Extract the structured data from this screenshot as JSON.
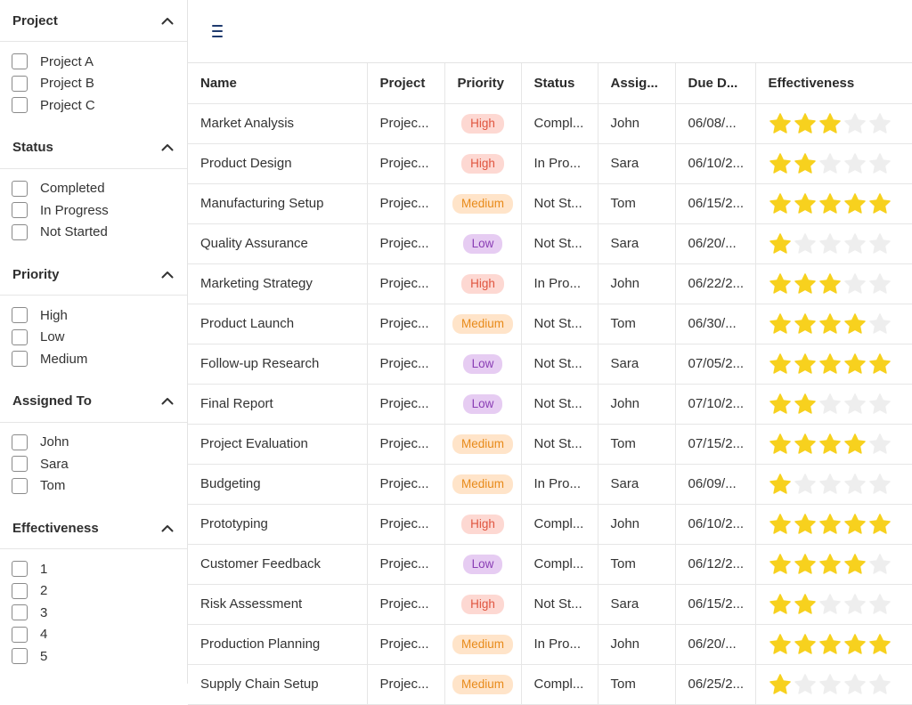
{
  "colors": {
    "star_filled": "#f7d11e",
    "star_empty": "#eeeeee",
    "high_bg": "#fdd8d2",
    "high_fg": "#e0553f",
    "medium_bg": "#ffe4c9",
    "medium_fg": "#e88a19",
    "low_bg": "#e6ccf2",
    "low_fg": "#8a3db5",
    "menu_icon": "#1f3a6e"
  },
  "sidebar": {
    "groups": [
      {
        "title": "Project",
        "icon": "chevron-up-icon",
        "options": [
          "Project A",
          "Project B",
          "Project C"
        ]
      },
      {
        "title": "Status",
        "icon": "chevron-up-icon",
        "options": [
          "Completed",
          "In Progress",
          "Not Started"
        ]
      },
      {
        "title": "Priority",
        "icon": "chevron-up-icon",
        "options": [
          "High",
          "Low",
          "Medium"
        ]
      },
      {
        "title": "Assigned To",
        "icon": "chevron-up-icon",
        "options": [
          "John",
          "Sara",
          "Tom"
        ]
      },
      {
        "title": "Effectiveness",
        "icon": "chevron-up-icon",
        "options": [
          "1",
          "2",
          "3",
          "4",
          "5"
        ]
      }
    ]
  },
  "toolbar": {
    "menu_icon": "hamburger-menu-icon"
  },
  "table": {
    "columns": [
      "Name",
      "Project",
      "Priority",
      "Status",
      "Assig...",
      "Due D...",
      "Effectiveness"
    ],
    "rows": [
      {
        "name": "Market Analysis",
        "project": "Projec...",
        "priority": "High",
        "status": "Compl...",
        "assigned": "John",
        "due": "06/08/...",
        "effectiveness": 3
      },
      {
        "name": "Product Design",
        "project": "Projec...",
        "priority": "High",
        "status": "In Pro...",
        "assigned": "Sara",
        "due": "06/10/2...",
        "effectiveness": 2
      },
      {
        "name": "Manufacturing Setup",
        "project": "Projec...",
        "priority": "Medium",
        "status": "Not St...",
        "assigned": "Tom",
        "due": "06/15/2...",
        "effectiveness": 5
      },
      {
        "name": "Quality Assurance",
        "project": "Projec...",
        "priority": "Low",
        "status": "Not St...",
        "assigned": "Sara",
        "due": "06/20/...",
        "effectiveness": 1
      },
      {
        "name": "Marketing Strategy",
        "project": "Projec...",
        "priority": "High",
        "status": "In Pro...",
        "assigned": "John",
        "due": "06/22/2...",
        "effectiveness": 3
      },
      {
        "name": "Product Launch",
        "project": "Projec...",
        "priority": "Medium",
        "status": "Not St...",
        "assigned": "Tom",
        "due": "06/30/...",
        "effectiveness": 4
      },
      {
        "name": "Follow-up Research",
        "project": "Projec...",
        "priority": "Low",
        "status": "Not St...",
        "assigned": "Sara",
        "due": "07/05/2...",
        "effectiveness": 5
      },
      {
        "name": "Final Report",
        "project": "Projec...",
        "priority": "Low",
        "status": "Not St...",
        "assigned": "John",
        "due": "07/10/2...",
        "effectiveness": 2
      },
      {
        "name": "Project Evaluation",
        "project": "Projec...",
        "priority": "Medium",
        "status": "Not St...",
        "assigned": "Tom",
        "due": "07/15/2...",
        "effectiveness": 4
      },
      {
        "name": "Budgeting",
        "project": "Projec...",
        "priority": "Medium",
        "status": "In Pro...",
        "assigned": "Sara",
        "due": "06/09/...",
        "effectiveness": 1
      },
      {
        "name": "Prototyping",
        "project": "Projec...",
        "priority": "High",
        "status": "Compl...",
        "assigned": "John",
        "due": "06/10/2...",
        "effectiveness": 5
      },
      {
        "name": "Customer Feedback",
        "project": "Projec...",
        "priority": "Low",
        "status": "Compl...",
        "assigned": "Tom",
        "due": "06/12/2...",
        "effectiveness": 4
      },
      {
        "name": "Risk Assessment",
        "project": "Projec...",
        "priority": "High",
        "status": "Not St...",
        "assigned": "Sara",
        "due": "06/15/2...",
        "effectiveness": 2
      },
      {
        "name": "Production Planning",
        "project": "Projec...",
        "priority": "Medium",
        "status": "In Pro...",
        "assigned": "John",
        "due": "06/20/...",
        "effectiveness": 5
      },
      {
        "name": "Supply Chain Setup",
        "project": "Projec...",
        "priority": "Medium",
        "status": "Compl...",
        "assigned": "Tom",
        "due": "06/25/2...",
        "effectiveness": 1
      }
    ]
  }
}
